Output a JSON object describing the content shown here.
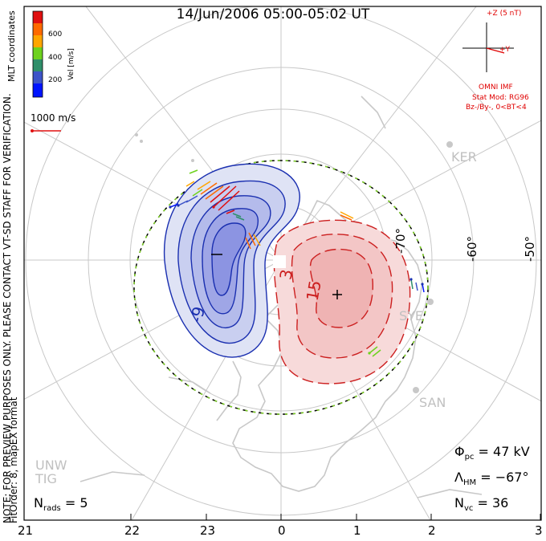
{
  "title": "14/Jun/2006 05:00-05:02 UT",
  "coordinates": "MLT coordinates",
  "colorbar": {
    "title": "Vel [m/s]",
    "ticks": [
      "600",
      "400",
      "200"
    ],
    "colors": [
      "#e01010",
      "#ff6a00",
      "#ffa600",
      "#6ed21e",
      "#2f8f6a",
      "#3d54c8",
      "#0014ff"
    ]
  },
  "reference_vector": {
    "label": "1000 m/s",
    "color": "#e01010"
  },
  "imf": {
    "plus_z": "+Z (5 nT)",
    "plus_y": "+Y",
    "source": "OMNI IMF",
    "model": "Stat Mod: RG96",
    "condition": "Bz-/By-, 0<BT<4",
    "color": "#e00000"
  },
  "watermark": "NOTE: FOR PREVIEW PURPOSES ONLY. PLEASE CONTACT VT-SD STAFF FOR VERIFICATION.",
  "fit": "FitOrder: 8, mapEX format",
  "stats": {
    "phi_pc": {
      "sym": "Φ",
      "sub": "pc",
      "value": "= 47 kV"
    },
    "lambda_hm": {
      "sym": "Λ",
      "sub": "HM",
      "value": "= −67°"
    },
    "n_vc": {
      "sym": "N",
      "sub": "vc",
      "value": "= 36"
    },
    "n_rads": {
      "sym": "N",
      "sub": "rads",
      "value": "= 5"
    }
  },
  "mlt_ticks": [
    "21",
    "22",
    "23",
    "0",
    "1",
    "2",
    "3"
  ],
  "mlat_labels": [
    "-70°",
    "-60°",
    "-50°"
  ],
  "contour_labels": [
    "-9",
    "3",
    "15"
  ],
  "stations": [
    "KER",
    "SYE",
    "SAN",
    "UNW",
    "TIG"
  ],
  "colors": {
    "negative": "#1a2fb0",
    "positive": "#cc1f1f",
    "coast": "#c8c8c8",
    "grid": "#c8c8c8",
    "hmb": "#7dd321"
  }
}
